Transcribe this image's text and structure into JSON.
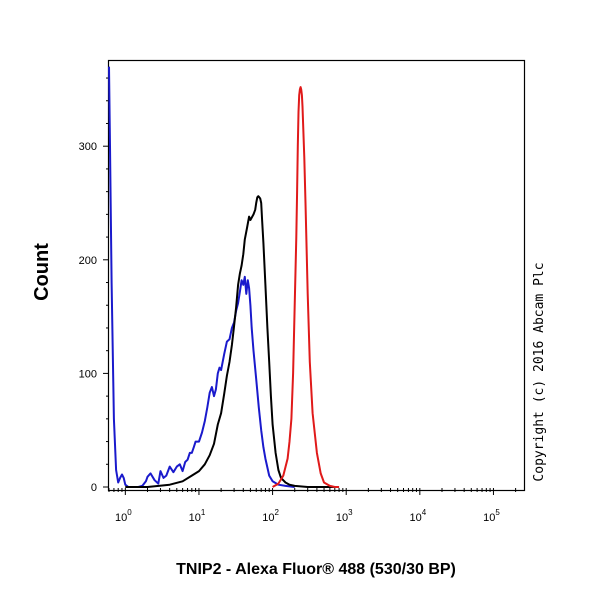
{
  "chart_data": {
    "type": "line",
    "title": "",
    "xlabel": "TNIP2 - Alexa Fluor® 488 (530/30 BP)",
    "ylabel": "Count",
    "x_scale": "log",
    "xlim": [
      0.6,
      260000
    ],
    "ylim": [
      0,
      375
    ],
    "x_ticks": [
      {
        "base": "10",
        "exp": "0",
        "value": 1
      },
      {
        "base": "10",
        "exp": "1",
        "value": 10
      },
      {
        "base": "10",
        "exp": "2",
        "value": 100
      },
      {
        "base": "10",
        "exp": "3",
        "value": 1000
      },
      {
        "base": "10",
        "exp": "4",
        "value": 10000
      },
      {
        "base": "10",
        "exp": "5",
        "value": 100000
      }
    ],
    "y_ticks": [
      {
        "label": "0",
        "value": 0
      },
      {
        "label": "100",
        "value": 100
      },
      {
        "label": "200",
        "value": 200
      },
      {
        "label": "300",
        "value": 300
      }
    ],
    "grid": false,
    "legend": "none",
    "series": [
      {
        "color": "#1a1acc",
        "x": [
          0.6,
          0.62,
          0.65,
          0.7,
          0.75,
          0.8,
          0.85,
          0.9,
          0.95,
          1.0,
          1.05,
          1.1,
          1.2,
          1.3,
          1.5,
          1.7,
          1.9,
          2.0,
          2.2,
          2.5,
          2.8,
          3.0,
          3.3,
          3.6,
          4.0,
          4.5,
          5.0,
          5.5,
          6.0,
          6.5,
          7.0,
          7.5,
          8.0,
          8.5,
          9.0,
          10.0,
          11.0,
          12.0,
          13.0,
          14.0,
          15.0,
          16.0,
          17.0,
          18.0,
          19.0,
          20.0,
          22.0,
          24.0,
          26.0,
          28.0,
          30.0,
          32.0,
          34.0,
          36.0,
          38.0,
          40.0,
          42.0,
          44.0,
          46.0,
          48.0,
          50.0,
          52.0,
          55.0,
          60.0,
          65.0,
          70.0,
          75.0,
          80.0,
          90.0,
          100.0,
          120.0,
          150.0,
          200.0
        ],
        "y": [
          370,
          300,
          180,
          60,
          15,
          4,
          8,
          11,
          8,
          2,
          1,
          0,
          0,
          0,
          0,
          1,
          5,
          9,
          12,
          6,
          3,
          14,
          8,
          10,
          18,
          13,
          18,
          20,
          14,
          22,
          24,
          30,
          30,
          35,
          40,
          40,
          48,
          58,
          70,
          83,
          88,
          80,
          86,
          100,
          105,
          103,
          117,
          128,
          130,
          140,
          145,
          155,
          162,
          172,
          182,
          178,
          185,
          170,
          182,
          175,
          160,
          140,
          120,
          95,
          70,
          50,
          35,
          25,
          10,
          5,
          2,
          1,
          0
        ]
      },
      {
        "color": "#000000",
        "x": [
          1.0,
          2.0,
          4.0,
          6.0,
          8.0,
          10.0,
          12.0,
          14.0,
          16.0,
          18.0,
          20.0,
          22.0,
          24.0,
          26.0,
          28.0,
          30.0,
          32.0,
          34.0,
          36.0,
          38.0,
          40.0,
          42.0,
          45.0,
          48.0,
          50.0,
          55.0,
          58.0,
          60.0,
          62.0,
          64.0,
          66.0,
          68.0,
          70.0,
          72.0,
          75.0,
          80.0,
          85.0,
          90.0,
          95.0,
          100.0,
          110.0,
          120.0,
          130.0,
          150.0,
          170.0,
          200.0,
          300.0,
          500.0,
          700.0
        ],
        "y": [
          0,
          0,
          2,
          5,
          10,
          14,
          20,
          28,
          38,
          55,
          65,
          82,
          98,
          110,
          125,
          142,
          158,
          178,
          188,
          195,
          205,
          218,
          228,
          238,
          235,
          240,
          244,
          250,
          255,
          256,
          255,
          254,
          250,
          235,
          215,
          178,
          140,
          110,
          80,
          55,
          30,
          15,
          8,
          4,
          2,
          1,
          0,
          0,
          0
        ]
      },
      {
        "color": "#e01a1a",
        "x": [
          100.0,
          120.0,
          140.0,
          160.0,
          170.0,
          180.0,
          190.0,
          200.0,
          210.0,
          215.0,
          220.0,
          225.0,
          230.0,
          235.0,
          240.0,
          245.0,
          250.0,
          255.0,
          260.0,
          270.0,
          280.0,
          290.0,
          300.0,
          320.0,
          350.0,
          400.0,
          450.0,
          500.0,
          600.0,
          700.0,
          800.0
        ],
        "y": [
          0,
          3,
          10,
          25,
          40,
          60,
          100,
          160,
          220,
          260,
          300,
          330,
          345,
          350,
          352,
          350,
          345,
          335,
          320,
          290,
          250,
          210,
          170,
          110,
          65,
          30,
          12,
          4,
          1,
          0,
          0
        ]
      }
    ]
  },
  "copyright": "Copyright (c) 2016 Abcam Plc",
  "colors": {
    "blue": "#1a1acc",
    "black": "#000000",
    "red": "#e01a1a"
  }
}
